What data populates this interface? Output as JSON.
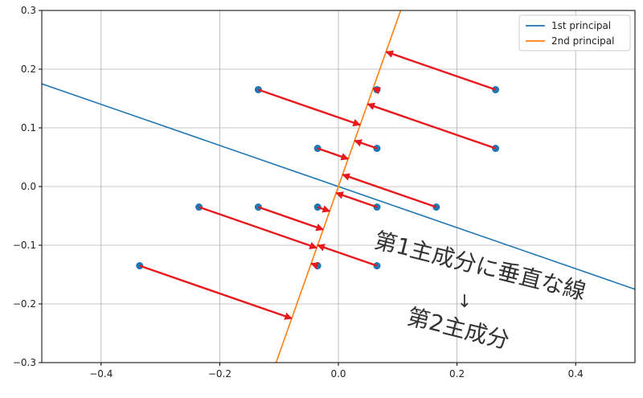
{
  "chart_data": {
    "type": "scatter",
    "xlim": [
      -0.5,
      0.5
    ],
    "ylim": [
      -0.3,
      0.3
    ],
    "xticks": [
      {
        "value": -0.4,
        "label": "−0.4"
      },
      {
        "value": -0.2,
        "label": "−0.2"
      },
      {
        "value": 0,
        "label": "0.0"
      },
      {
        "value": 0.2,
        "label": "0.2"
      },
      {
        "value": 0.4,
        "label": "0.4"
      }
    ],
    "yticks": [
      {
        "value": -0.3,
        "label": "−0.3"
      },
      {
        "value": -0.2,
        "label": "−0.2"
      },
      {
        "value": -0.1,
        "label": "−0.1"
      },
      {
        "value": 0,
        "label": "0.0"
      },
      {
        "value": 0.1,
        "label": "0.1"
      },
      {
        "value": 0.2,
        "label": "0.2"
      },
      {
        "value": 0.3,
        "label": "0.3"
      }
    ],
    "grid": true,
    "legend": "upper-right",
    "points": {
      "color": "#1f77b4",
      "x": [
        -0.135,
        0.065,
        0.265,
        -0.035,
        0.065,
        0.265,
        -0.035,
        0.065,
        0.165,
        -0.235,
        -0.135,
        -0.035,
        0.065,
        -0.335
      ],
      "y": [
        0.165,
        0.165,
        0.165,
        0.065,
        0.065,
        0.065,
        -0.035,
        -0.035,
        -0.035,
        -0.035,
        -0.035,
        -0.135,
        -0.135,
        -0.135
      ]
    },
    "projections": {
      "color": "#e8191c",
      "x": [
        0.0367,
        0.0585,
        0.0804,
        0.0165,
        0.0274,
        0.0492,
        -0.0147,
        -0.0038,
        0.0071,
        -0.0366,
        -0.0256,
        -0.0459,
        -0.035,
        -0.0787
      ],
      "y": [
        0.1049,
        0.1673,
        0.2296,
        0.047,
        0.0782,
        0.1405,
        -0.0421,
        -0.0109,
        0.0203,
        -0.1045,
        -0.0733,
        -0.1312,
        -0.1,
        -0.2247
      ]
    },
    "series": [
      {
        "name": "1st principal",
        "color": "#1f77b4",
        "x": [
          -0.5,
          0.5
        ],
        "y": [
          0.175,
          -0.175
        ]
      },
      {
        "name": "2nd principal",
        "color": "#ff7f0e",
        "x": [
          -0.105,
          0.105
        ],
        "y": [
          -0.3,
          0.3
        ]
      }
    ],
    "annotations": [
      "第1主成分に垂直な線",
      "↓",
      "第2主成分"
    ]
  }
}
